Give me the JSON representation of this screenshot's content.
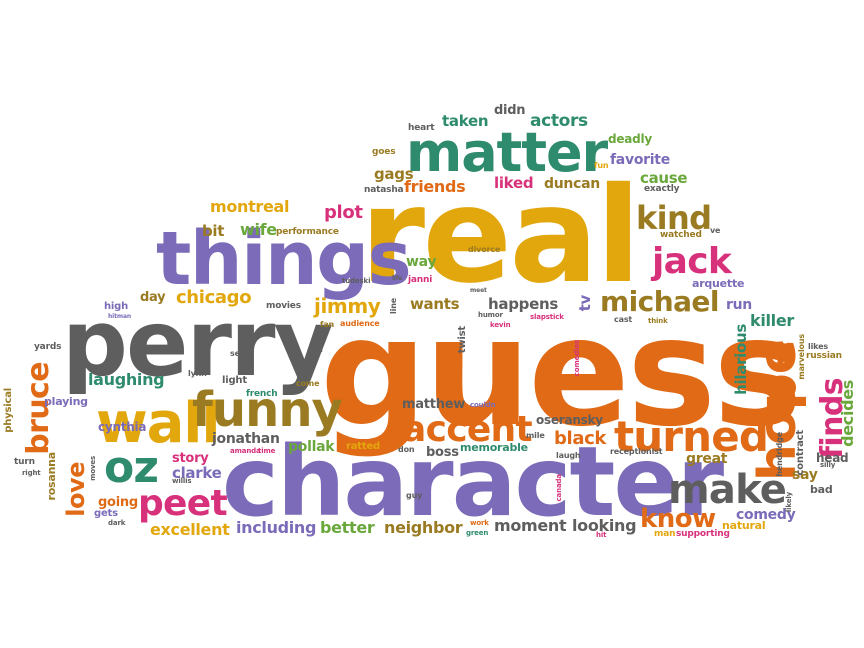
{
  "palette": {
    "orange": "#e06a16",
    "gold": "#e3a70e",
    "purple": "#7b6bb8",
    "gray": "#5e5e5e",
    "teal": "#2e8b6e",
    "green": "#6aa83c",
    "pink": "#d8317b",
    "olive": "#9a7b22"
  },
  "words": {
    "real": "real",
    "guess": "guess",
    "character": "character",
    "perry": "perry",
    "things": "things",
    "matter": "matter",
    "wall": "wall",
    "funny": "funny",
    "hope": "hope",
    "turned": "turned",
    "make": "make",
    "accent": "accent",
    "oz": "oz",
    "peet": "peet",
    "jack": "jack",
    "kind": "kind",
    "michael": "michael",
    "know": "know",
    "finds": "finds",
    "bruce": "bruce",
    "love": "love",
    "chicago": "chicago",
    "jimmy": "jimmy",
    "laughing": "laughing",
    "jonathan": "jonathan",
    "clarke": "clarke",
    "story": "story",
    "excellent": "excellent",
    "including": "including",
    "better": "better",
    "neighbor": "neighbor",
    "moment": "moment",
    "looking": "looking",
    "comedy": "comedy",
    "black": "black",
    "great": "great",
    "hilarious": "hilarious",
    "killer": "killer",
    "decides": "decides",
    "friends": "friends",
    "gags": "gags",
    "liked": "liked",
    "duncan": "duncan",
    "cause": "cause",
    "favorite": "favorite",
    "actors": "actors",
    "taken": "taken",
    "didn": "didn",
    "deadly": "deadly",
    "plot": "plot",
    "montreal": "montreal",
    "wife": "wife",
    "bit": "bit",
    "day": "day",
    "wants": "wants",
    "happens": "happens",
    "way": "way",
    "run": "run",
    "say": "say",
    "tv": "tv",
    "pollak": "pollak",
    "matthew": "matthew",
    "boss": "boss",
    "memorable": "memorable",
    "oseransky": "oseransky",
    "going": "going",
    "cynthia": "cynthia",
    "rosanna": "rosanna",
    "playing": "playing",
    "arquette": "arquette",
    "natural": "natural",
    "supporting": "supporting",
    "man": "man",
    "bad": "bad",
    "head": "head",
    "contract": "contract",
    "watched": "watched",
    "exactly": "exactly",
    "natasha": "natasha",
    "goes": "goes",
    "heart": "heart",
    "performance": "performance",
    "movies": "movies",
    "light": "light",
    "french": "french",
    "high": "high",
    "yards": "yards",
    "physical": "physical",
    "turn": "turn",
    "gets": "gets",
    "twist": "twist",
    "divorce": "divorce",
    "janni": "janni",
    "fun": "fun",
    "ve": "ve",
    "cast": "cast",
    "think": "think",
    "likes": "likes",
    "russian": "russian",
    "marvelous": "marvelous",
    "receptionist": "receptionist",
    "hendridge": "hendridge",
    "likely": "likely",
    "silly": "silly",
    "laugh": "laugh",
    "canada": "canada",
    "comedies": "comedies",
    "slapstick": "slapstick",
    "humor": "humor",
    "kevin": "kevin",
    "meet": "meet",
    "line": "line",
    "life": "life",
    "tudeski": "tudeski",
    "fan": "fan",
    "audience": "audience",
    "come": "come",
    "seen": "seen",
    "isn": "isn",
    "lynn": "lynn",
    "amanda": "amanda",
    "time": "time",
    "willis": "willis",
    "hitman": "hitman",
    "right": "right",
    "moves": "moves",
    "dark": "dark",
    "guy": "guy",
    "ratted": "ratted",
    "don": "don",
    "couldn": "couldn",
    "mile": "mile",
    "work": "work",
    "green": "green",
    "hit": "hit"
  }
}
